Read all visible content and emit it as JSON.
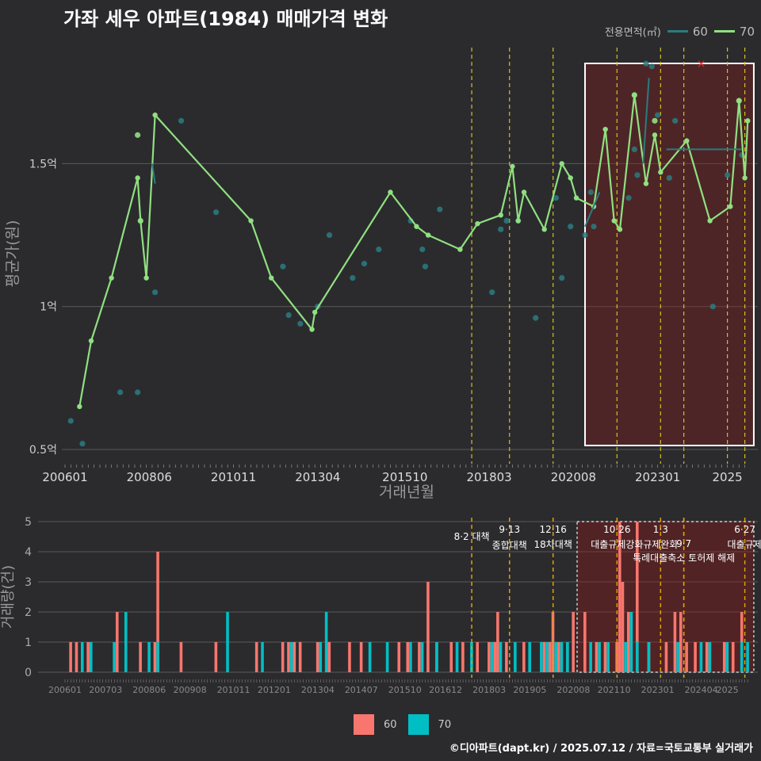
{
  "title": "가좌 세우 아파트(1984) 매매가격 변화",
  "credit": "©디아파트(dapt.kr) / 2025.07.12 / 자료=국토교통부 실거래가",
  "colors": {
    "area60": "#2a7c80",
    "area70": "#90e080",
    "bar60": "#f8766d",
    "bar70": "#00bfc4",
    "highlight": "#8b1a1a",
    "policy": "#d4c020"
  },
  "legend_top": {
    "title": "전용면적(㎡)",
    "items": [
      "60",
      "70"
    ]
  },
  "legend_bottom": {
    "items": [
      "60",
      "70"
    ]
  },
  "chart_data": [
    {
      "type": "line",
      "title": "가좌 세우 아파트(1984) 매매가격 변화",
      "xlabel": "거래년월",
      "ylabel": "평균가(원)",
      "x_tick_labels": [
        "200601",
        "200806",
        "201011",
        "201304",
        "201510",
        "201803",
        "202008",
        "202301",
        "2025"
      ],
      "y_ticks": [
        {
          "value": 0.5,
          "label": "0.5억"
        },
        {
          "value": 1.0,
          "label": "1억"
        },
        {
          "value": 1.5,
          "label": "1.5억"
        }
      ],
      "ylim": [
        0.45,
        1.92
      ],
      "grid": true,
      "legend_position": "top-right",
      "highlight_range": {
        "start": "2020.11",
        "end": "2025.8"
      },
      "policy_dates": [
        "2017.8",
        "2018.9",
        "2019.12",
        "2021.10",
        "2023.1",
        "2023.9",
        "2024.12",
        "2025.6"
      ],
      "series": [
        {
          "name": "70",
          "line": [
            [
              "2006.5",
              0.65
            ],
            [
              "2006.9",
              0.88
            ],
            [
              "2007.4",
              1.1
            ],
            [
              "2008.1",
              1.45
            ],
            [
              "2008.2",
              1.3
            ],
            [
              "2008.4",
              1.1
            ],
            [
              "2008.7",
              1.67
            ],
            [
              "2011.4",
              1.3
            ],
            [
              "2011.11",
              1.1
            ],
            [
              "2013.1",
              0.92
            ],
            [
              "2013.2",
              0.98
            ],
            [
              "2015.4",
              1.4
            ],
            [
              "2016.1",
              1.28
            ],
            [
              "2016.5",
              1.25
            ],
            [
              "2017.4",
              1.2
            ],
            [
              "2017.10",
              1.29
            ],
            [
              "2018.6",
              1.32
            ],
            [
              "2018.10",
              1.49
            ],
            [
              "2018.12",
              1.3
            ],
            [
              "2019.2",
              1.4
            ],
            [
              "2019.9",
              1.27
            ],
            [
              "2020.3",
              1.5
            ],
            [
              "2020.6",
              1.45
            ],
            [
              "2020.8",
              1.38
            ],
            [
              "2021.2",
              1.35
            ],
            [
              "2021.6",
              1.62
            ],
            [
              "2021.9",
              1.3
            ],
            [
              "2021.11",
              1.27
            ],
            [
              "2022.4",
              1.74
            ],
            [
              "2022.8",
              1.43
            ],
            [
              "2022.11",
              1.6
            ],
            [
              "2023.1",
              1.47
            ],
            [
              "2023.10",
              1.58
            ],
            [
              "2024.6",
              1.3
            ],
            [
              "2025.1",
              1.35
            ],
            [
              "2025.4",
              1.72
            ],
            [
              "2025.6",
              1.45
            ],
            [
              "2025.7",
              1.65
            ]
          ],
          "points": [
            [
              "2008.1",
              1.6
            ],
            [
              "2008.2",
              1.3
            ],
            [
              "2022.4",
              1.74
            ],
            [
              "2022.11",
              1.65
            ],
            [
              "2025.4",
              1.72
            ]
          ]
        },
        {
          "name": "60",
          "line": [
            [
              "2008.6",
              1.5
            ],
            [
              "2008.7",
              1.43
            ],
            [
              "2020.11",
              1.28
            ],
            [
              "2021.4",
              1.4
            ],
            [
              "2022.7",
              1.5
            ],
            [
              "2022.9",
              1.8
            ],
            [
              "2023.3",
              1.55
            ],
            [
              "2025.5",
              1.55
            ]
          ],
          "points": [
            [
              "2006.2",
              0.6
            ],
            [
              "2006.6",
              0.52
            ],
            [
              "2007.7",
              0.7
            ],
            [
              "2008.1",
              0.7
            ],
            [
              "2008.7",
              1.05
            ],
            [
              "2009.4",
              1.65
            ],
            [
              "2010.4",
              1.33
            ],
            [
              "2012.3",
              1.14
            ],
            [
              "2012.5",
              0.97
            ],
            [
              "2012.9",
              0.94
            ],
            [
              "2013.3",
              1.0
            ],
            [
              "2013.7",
              1.25
            ],
            [
              "2014.3",
              1.1
            ],
            [
              "2014.7",
              1.15
            ],
            [
              "2015.0",
              1.2
            ],
            [
              "2015.11",
              1.3
            ],
            [
              "2016.3",
              1.2
            ],
            [
              "2016.4",
              1.14
            ],
            [
              "2016.9",
              1.34
            ],
            [
              "2018.3",
              1.05
            ],
            [
              "2018.6",
              1.27
            ],
            [
              "2018.8",
              1.3
            ],
            [
              "2019.0",
              1.3
            ],
            [
              "2019.6",
              0.96
            ],
            [
              "2020.1",
              1.38
            ],
            [
              "2020.3",
              1.1
            ],
            [
              "2020.6",
              1.28
            ],
            [
              "2020.11",
              1.25
            ],
            [
              "2021.1",
              1.4
            ],
            [
              "2021.2",
              1.28
            ],
            [
              "2022.2",
              1.38
            ],
            [
              "2022.4",
              1.55
            ],
            [
              "2022.5",
              1.46
            ],
            [
              "2022.8",
              1.85
            ],
            [
              "2022.10",
              1.84
            ],
            [
              "2023.0",
              1.67
            ],
            [
              "2023.4",
              1.45
            ],
            [
              "2023.6",
              1.65
            ],
            [
              "2024.7",
              1.0
            ],
            [
              "2025.0",
              1.46
            ],
            [
              "2025.5",
              1.53
            ]
          ]
        }
      ],
      "annotations": [
        {
          "x": "2024.3",
          "y": 1.85,
          "label": "×"
        }
      ]
    },
    {
      "type": "bar",
      "xlabel": "",
      "ylabel": "거래량(건)",
      "x_tick_labels": [
        "200601",
        "200703",
        "200806",
        "200908",
        "201011",
        "201201",
        "201304",
        "201407",
        "201510",
        "201612",
        "201803",
        "201905",
        "202008",
        "202110",
        "202301",
        "202404",
        "2025"
      ],
      "y_ticks": [
        0,
        1,
        2,
        3,
        4,
        5
      ],
      "ylim": [
        0,
        5
      ],
      "highlight_range": {
        "start": "2020.11",
        "end": "2025.8"
      },
      "policy_annotations": [
        {
          "date": "2017.8",
          "line1": "",
          "line2": "8·2 대책"
        },
        {
          "date": "2018.9",
          "line1": "9·13",
          "line2": "종합대책"
        },
        {
          "date": "2019.12",
          "line1": "12·16",
          "line2": "18차대책"
        },
        {
          "date": "2021.10",
          "line1": "10·26",
          "line2": "대출규제강화"
        },
        {
          "date": "2023.1",
          "line1": "1·3",
          "line2": "규제완화"
        },
        {
          "date": "2023.9",
          "line1": "",
          "line2": "9·7"
        },
        {
          "date": "2023.9",
          "line1": "",
          "line2": "특례대출축소 토허제 해제"
        },
        {
          "date": "2025.6",
          "line1": "6·27",
          "line2": "대출규제"
        }
      ],
      "series": [
        {
          "name": "60",
          "bars": [
            [
              "2006.2",
              1
            ],
            [
              "2006.4",
              1
            ],
            [
              "2006.8",
              1
            ],
            [
              "2007.6",
              2
            ],
            [
              "2008.2",
              1
            ],
            [
              "2008.7",
              1
            ],
            [
              "2008.8",
              4
            ],
            [
              "2009.4",
              1
            ],
            [
              "2010.4",
              1
            ],
            [
              "2011.6",
              1
            ],
            [
              "2012.3",
              1
            ],
            [
              "2012.5",
              1
            ],
            [
              "2012.7",
              1
            ],
            [
              "2012.9",
              1
            ],
            [
              "2013.3",
              1
            ],
            [
              "2013.7",
              1
            ],
            [
              "2014.2",
              1
            ],
            [
              "2014.6",
              1
            ],
            [
              "2015.7",
              1
            ],
            [
              "2015.10",
              1
            ],
            [
              "2016.2",
              1
            ],
            [
              "2016.5",
              3
            ],
            [
              "2016.8",
              1
            ],
            [
              "2017.1",
              1
            ],
            [
              "2017.5",
              1
            ],
            [
              "2017.10",
              1
            ],
            [
              "2018.2",
              1
            ],
            [
              "2018.4",
              1
            ],
            [
              "2018.5",
              2
            ],
            [
              "2018.8",
              1
            ],
            [
              "2019.2",
              1
            ],
            [
              "2019.9",
              1
            ],
            [
              "2019.11",
              1
            ],
            [
              "2019.12",
              2
            ],
            [
              "2020.2",
              1
            ],
            [
              "2020.5",
              1
            ],
            [
              "2020.7",
              2
            ],
            [
              "2020.11",
              2
            ],
            [
              "2021.3",
              1
            ],
            [
              "2021.6",
              1
            ],
            [
              "2021.10",
              1
            ],
            [
              "2021.11",
              5
            ],
            [
              "2022.0",
              3
            ],
            [
              "2022.2",
              2
            ],
            [
              "2022.5",
              5
            ],
            [
              "2022.9",
              1
            ],
            [
              "2023.3",
              1
            ],
            [
              "2023.6",
              2
            ],
            [
              "2023.8",
              2
            ],
            [
              "2023.10",
              1
            ],
            [
              "2024.1",
              1
            ],
            [
              "2024.5",
              1
            ],
            [
              "2024.11",
              1
            ],
            [
              "2025.2",
              1
            ],
            [
              "2025.5",
              2
            ]
          ]
        },
        {
          "name": "70",
          "bars": [
            [
              "2006.6",
              1
            ],
            [
              "2006.9",
              1
            ],
            [
              "2007.5",
              1
            ],
            [
              "2007.9",
              2
            ],
            [
              "2008.5",
              1
            ],
            [
              "2008.8",
              1
            ],
            [
              "2010.8",
              2
            ],
            [
              "2011.8",
              1
            ],
            [
              "2012.6",
              1
            ],
            [
              "2013.4",
              1
            ],
            [
              "2013.6",
              2
            ],
            [
              "2014.9",
              1
            ],
            [
              "2015.3",
              1
            ],
            [
              "2015.11",
              1
            ],
            [
              "2016.3",
              1
            ],
            [
              "2016.8",
              1
            ],
            [
              "2017.3",
              1
            ],
            [
              "2017.8",
              1
            ],
            [
              "2018.3",
              1
            ],
            [
              "2018.6",
              1
            ],
            [
              "2018.11",
              1
            ],
            [
              "2019.4",
              1
            ],
            [
              "2019.8",
              1
            ],
            [
              "2019.10",
              1
            ],
            [
              "2020.1",
              1
            ],
            [
              "2020.3",
              1
            ],
            [
              "2020.5",
              1
            ],
            [
              "2021.1",
              1
            ],
            [
              "2021.4",
              1
            ],
            [
              "2021.7",
              1
            ],
            [
              "2022.1",
              1
            ],
            [
              "2022.3",
              2
            ],
            [
              "2022.5",
              1
            ],
            [
              "2022.9",
              1
            ],
            [
              "2023.7",
              1
            ],
            [
              "2024.3",
              1
            ],
            [
              "2024.6",
              1
            ],
            [
              "2025.0",
              1
            ],
            [
              "2025.5",
              1
            ],
            [
              "2025.7",
              1
            ]
          ]
        }
      ]
    }
  ]
}
